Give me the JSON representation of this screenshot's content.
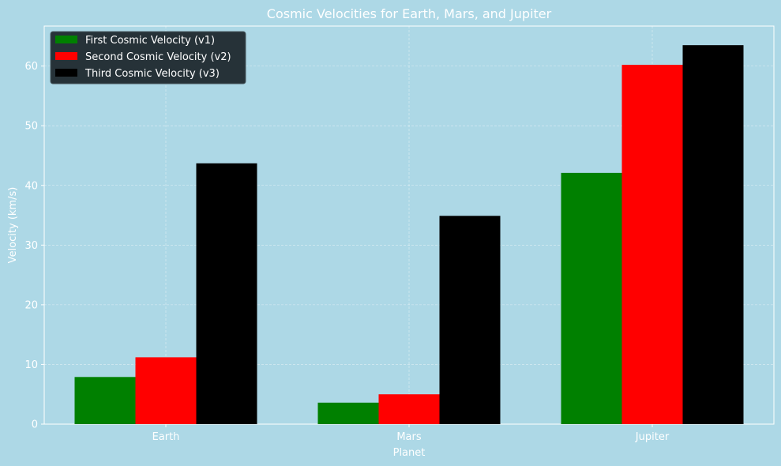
{
  "chart_data": {
    "type": "bar",
    "title": "Cosmic Velocities for Earth, Mars, and Jupiter",
    "xlabel": "Planet",
    "ylabel": "Velocity (km/s)",
    "categories": [
      "Earth",
      "Mars",
      "Jupiter"
    ],
    "series": [
      {
        "name": "First Cosmic Velocity (v1)",
        "color": "#008000",
        "values": [
          7.9,
          3.6,
          42.1
        ]
      },
      {
        "name": "Second Cosmic Velocity (v2)",
        "color": "#ff0000",
        "values": [
          11.2,
          5.0,
          60.2
        ]
      },
      {
        "name": "Third Cosmic Velocity (v3)",
        "color": "#000000",
        "values": [
          43.7,
          34.9,
          63.5
        ]
      }
    ],
    "ylim": [
      0,
      66.7
    ],
    "yticks": [
      0,
      10,
      20,
      30,
      40,
      50,
      60
    ],
    "grid": true,
    "legend_position": "top-left"
  },
  "colors": {
    "background": "#add8e6",
    "text": "#ffffff",
    "legend_bg": "#263238"
  }
}
